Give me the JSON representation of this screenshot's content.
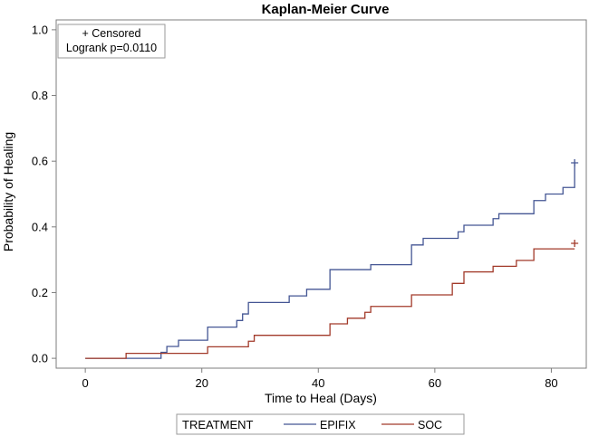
{
  "chart_data": {
    "type": "line",
    "subtype": "kaplan-meier step curve",
    "title": "Kaplan-Meier Curve",
    "xlabel": "Time to Heal (Days)",
    "ylabel": "Probability of Healing",
    "xlim": [
      -5,
      86
    ],
    "ylim": [
      -0.03,
      1.03
    ],
    "x_ticks": [
      0,
      20,
      40,
      60,
      80
    ],
    "y_ticks": [
      0.0,
      0.2,
      0.4,
      0.6,
      0.8,
      1.0
    ],
    "y_tick_labels": [
      "0.0",
      "0.2",
      "0.4",
      "0.6",
      "0.8",
      "1.0"
    ],
    "grid": false,
    "inset": {
      "line1": "+ Censored",
      "line2": "Logrank p=0.0110",
      "placement": "top-left"
    },
    "legend": {
      "title": "TREATMENT",
      "placement": "bottom"
    },
    "series": [
      {
        "name": "EPIFIX",
        "color": "#445694",
        "steps": [
          [
            0,
            0
          ],
          [
            13,
            0.018
          ],
          [
            14,
            0.036
          ],
          [
            16,
            0.055
          ],
          [
            21,
            0.095
          ],
          [
            26,
            0.115
          ],
          [
            27,
            0.135
          ],
          [
            28,
            0.17
          ],
          [
            35,
            0.19
          ],
          [
            38,
            0.21
          ],
          [
            42,
            0.27
          ],
          [
            49,
            0.285
          ],
          [
            56,
            0.345
          ],
          [
            58,
            0.365
          ],
          [
            64,
            0.385
          ],
          [
            65,
            0.405
          ],
          [
            70,
            0.425
          ],
          [
            71,
            0.44
          ],
          [
            77,
            0.48
          ],
          [
            79,
            0.5
          ],
          [
            82,
            0.52
          ],
          [
            84,
            0.595
          ]
        ],
        "end_time": 84,
        "censored": [
          [
            84,
            0.595
          ]
        ]
      },
      {
        "name": "SOC",
        "color": "#a23a2a",
        "steps": [
          [
            0,
            0
          ],
          [
            7,
            0.015
          ],
          [
            21,
            0.035
          ],
          [
            28,
            0.052
          ],
          [
            29,
            0.07
          ],
          [
            42,
            0.105
          ],
          [
            45,
            0.122
          ],
          [
            48,
            0.14
          ],
          [
            49,
            0.158
          ],
          [
            56,
            0.193
          ],
          [
            63,
            0.228
          ],
          [
            65,
            0.263
          ],
          [
            70,
            0.28
          ],
          [
            74,
            0.298
          ],
          [
            77,
            0.333
          ]
        ],
        "end_time": 84,
        "censored": [
          [
            84,
            0.35
          ]
        ]
      }
    ]
  }
}
